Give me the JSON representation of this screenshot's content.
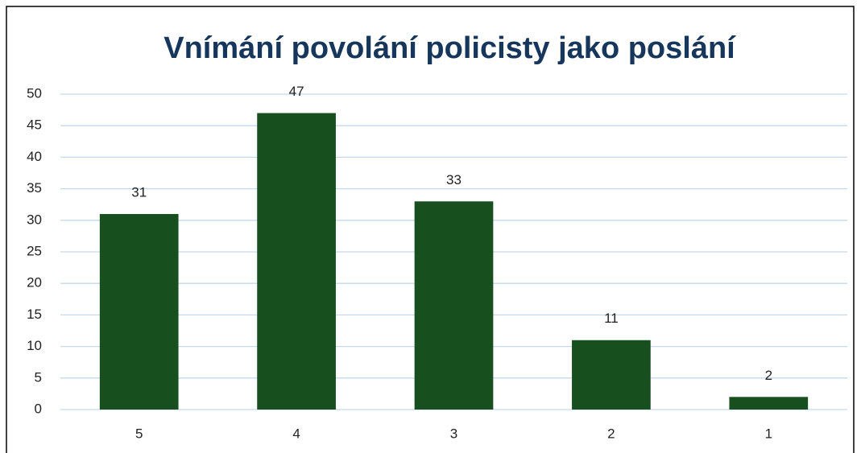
{
  "chart_data": {
    "type": "bar",
    "title": "Vnímání povolání policisty jako poslání",
    "categories": [
      "5",
      "4",
      "3",
      "2",
      "1"
    ],
    "values": [
      31,
      47,
      33,
      11,
      2
    ],
    "color": "#174f1f",
    "ylim": [
      0,
      50
    ],
    "yticks": [
      0,
      5,
      10,
      15,
      20,
      25,
      30,
      35,
      40,
      45,
      50
    ],
    "grid": true
  }
}
